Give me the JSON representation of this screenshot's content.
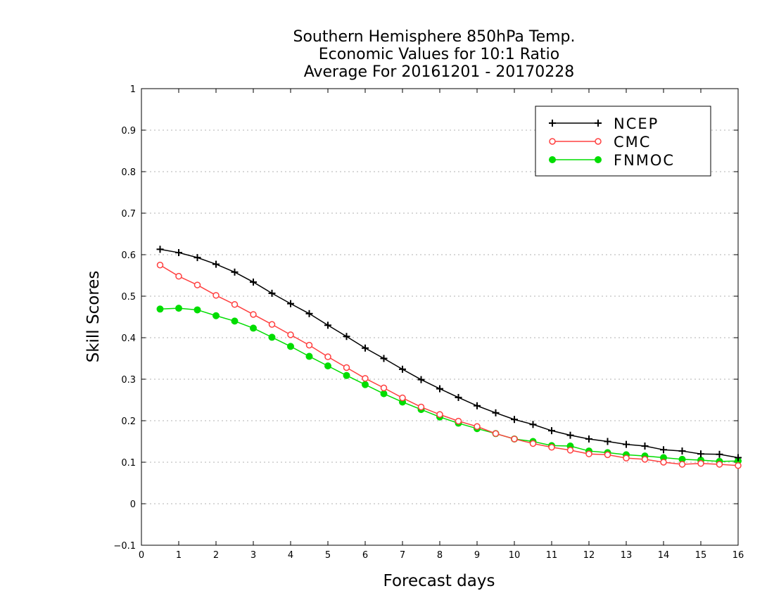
{
  "chart_data": {
    "type": "line",
    "title_lines": [
      "Southern Hemisphere 850hPa Temp.",
      "Economic Values for 10:1 Ratio",
      "Average For 20161201 - 20170228"
    ],
    "xlabel": "Forecast days",
    "ylabel": "Skill Scores",
    "xlim": [
      0,
      16
    ],
    "ylim": [
      -0.1,
      1
    ],
    "xticks": [
      0,
      1,
      2,
      3,
      4,
      5,
      6,
      7,
      8,
      9,
      10,
      11,
      12,
      13,
      14,
      15,
      16
    ],
    "yticks": [
      -0.1,
      0,
      0.1,
      0.2,
      0.3,
      0.4,
      0.5,
      0.6,
      0.7,
      0.8,
      0.9,
      1
    ],
    "ytick_labels": [
      "−0.1",
      "0",
      "0.1",
      "0.2",
      "0.3",
      "0.4",
      "0.5",
      "0.6",
      "0.7",
      "0.8",
      "0.9",
      "1"
    ],
    "grid": "horizontal-dotted",
    "legend_position": "top-right",
    "x": [
      0.5,
      1,
      1.5,
      2,
      2.5,
      3,
      3.5,
      4,
      4.5,
      5,
      5.5,
      6,
      6.5,
      7,
      7.5,
      8,
      8.5,
      9,
      9.5,
      10,
      10.5,
      11,
      11.5,
      12,
      12.5,
      13,
      13.5,
      14,
      14.5,
      15,
      15.5,
      16
    ],
    "series": [
      {
        "name": "NCEP",
        "color": "#000000",
        "marker": "plus",
        "values": [
          0.613,
          0.605,
          0.593,
          0.577,
          0.558,
          0.534,
          0.507,
          0.482,
          0.458,
          0.43,
          0.403,
          0.375,
          0.35,
          0.324,
          0.299,
          0.277,
          0.256,
          0.236,
          0.219,
          0.203,
          0.191,
          0.176,
          0.165,
          0.156,
          0.15,
          0.143,
          0.139,
          0.13,
          0.127,
          0.12,
          0.119,
          0.111
        ]
      },
      {
        "name": "CMC",
        "color": "#ff4040",
        "marker": "open-circle",
        "values": [
          0.575,
          0.548,
          0.527,
          0.502,
          0.48,
          0.456,
          0.432,
          0.407,
          0.382,
          0.354,
          0.328,
          0.302,
          0.279,
          0.255,
          0.233,
          0.215,
          0.199,
          0.186,
          0.169,
          0.156,
          0.145,
          0.136,
          0.129,
          0.12,
          0.118,
          0.11,
          0.107,
          0.1,
          0.095,
          0.097,
          0.095,
          0.092
        ]
      },
      {
        "name": "FNMOC",
        "color": "#00dd00",
        "marker": "filled-circle",
        "values": [
          0.469,
          0.471,
          0.467,
          0.453,
          0.44,
          0.423,
          0.401,
          0.379,
          0.355,
          0.332,
          0.309,
          0.287,
          0.265,
          0.245,
          0.227,
          0.209,
          0.194,
          0.181,
          0.169,
          0.156,
          0.15,
          0.14,
          0.139,
          0.127,
          0.123,
          0.118,
          0.115,
          0.111,
          0.107,
          0.105,
          0.102,
          0.103
        ]
      }
    ]
  }
}
